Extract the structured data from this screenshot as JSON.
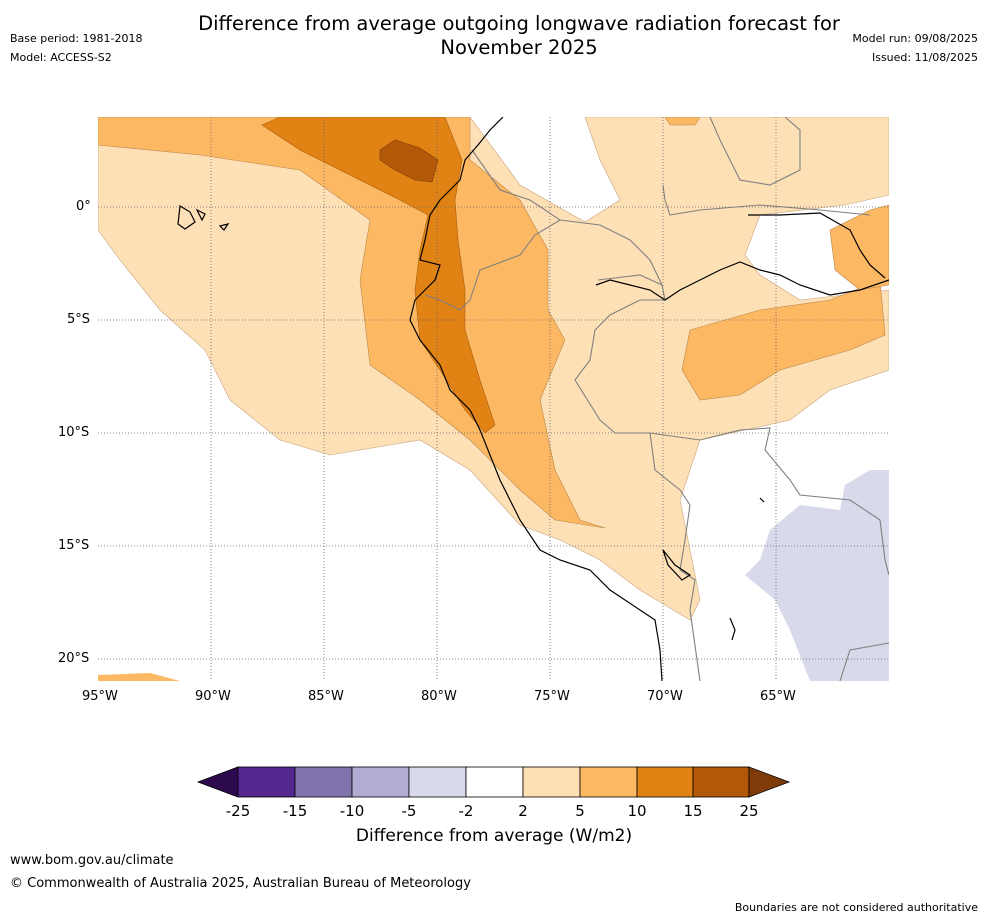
{
  "header": {
    "title_line1": "Difference from average outgoing longwave radiation forecast for",
    "title_line2": "November 2025",
    "base_period": "Base period: 1981-2018",
    "model": "Model: ACCESS-S2",
    "model_run": "Model run: 09/08/2025",
    "issued": "Issued: 11/08/2025"
  },
  "map": {
    "lat_labels": [
      "0°",
      "5°S",
      "10°S",
      "15°S",
      "20°S"
    ],
    "lon_labels": [
      "95°W",
      "90°W",
      "85°W",
      "80°W",
      "75°W",
      "70°W",
      "65°W"
    ],
    "colors": {
      "neg25": "#2d0a4e",
      "neg15": "#54278f",
      "neg10": "#8073ac",
      "neg5": "#b2abd2",
      "neg2": "#d8daeb",
      "zero": "#ffffff",
      "pos2": "#fee0b6",
      "pos5": "#fdb863",
      "pos10": "#e08214",
      "pos15": "#b35806",
      "pos25": "#7f3b08",
      "coast": "#000000",
      "border": "#808080",
      "grid": "#666666"
    }
  },
  "colorbar": {
    "labels": [
      "-25",
      "-15",
      "-10",
      "-5",
      "-2",
      "2",
      "5",
      "10",
      "15",
      "25"
    ],
    "title": "Difference from average (W/m2)"
  },
  "footer": {
    "url": "www.bom.gov.au/climate",
    "copyright": "© Commonwealth of Australia 2025, Australian Bureau of Meteorology",
    "disclaimer": "Boundaries are not considered authoritative"
  }
}
